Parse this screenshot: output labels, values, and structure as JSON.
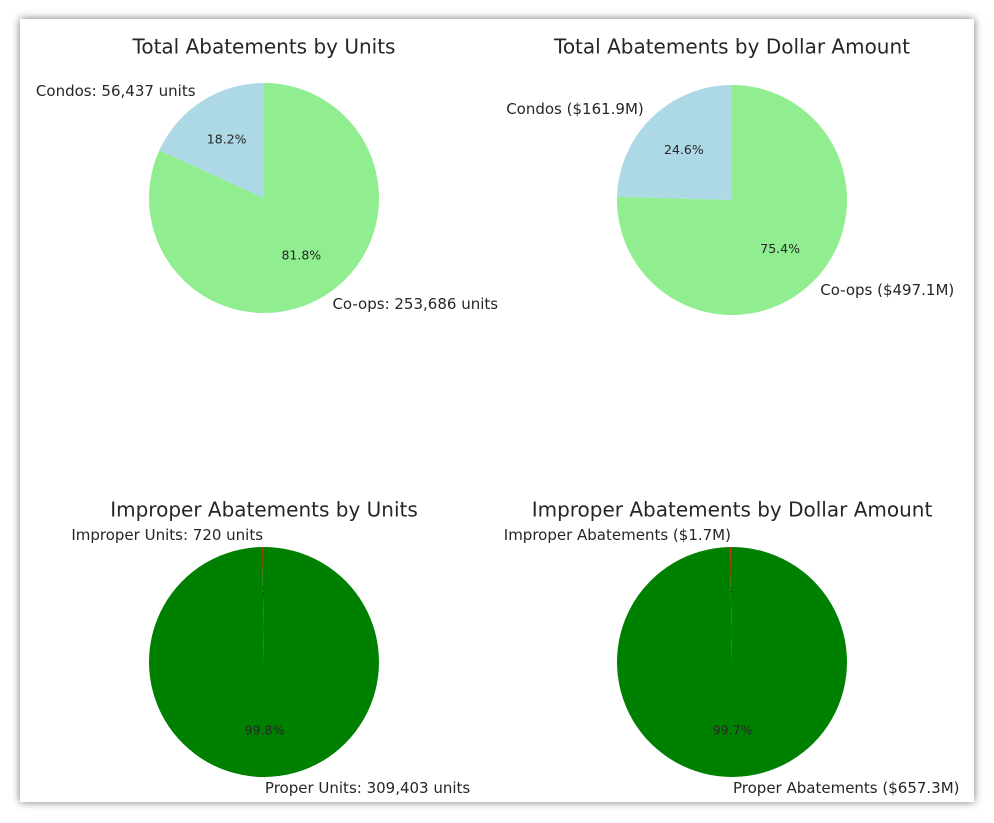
{
  "chart_data": [
    {
      "type": "pie",
      "title": "Total Abatements by Units",
      "slices": [
        {
          "label": "Condos: 56,437 units",
          "value": 56437,
          "percent": "18.2%",
          "color": "#add8e6"
        },
        {
          "label": "Co-ops: 253,686 units",
          "value": 253686,
          "percent": "81.8%",
          "color": "#90ee90"
        }
      ]
    },
    {
      "type": "pie",
      "title": "Total Abatements by Dollar Amount",
      "slices": [
        {
          "label": "Condos ($161.9M)",
          "value": 161.9,
          "percent": "24.6%",
          "color": "#add8e6"
        },
        {
          "label": "Co-ops ($497.1M)",
          "value": 497.1,
          "percent": "75.4%",
          "color": "#90ee90"
        }
      ]
    },
    {
      "type": "pie",
      "title": "Improper Abatements by Units",
      "slices": [
        {
          "label": "Improper Units: 720 units",
          "value": 720,
          "percent": "0.2%",
          "color": "#ff0000"
        },
        {
          "label": "Proper Units: 309,403 units",
          "value": 309403,
          "percent": "99.8%",
          "color": "#008000"
        }
      ]
    },
    {
      "type": "pie",
      "title": "Improper Abatements by Dollar Amount",
      "slices": [
        {
          "label": "Improper Abatements ($1.7M)",
          "value": 1.7,
          "percent": "0.3%",
          "color": "#ff0000"
        },
        {
          "label": "Proper Abatements ($657.3M)",
          "value": 657.3,
          "percent": "99.7%",
          "color": "#008000"
        }
      ]
    }
  ]
}
